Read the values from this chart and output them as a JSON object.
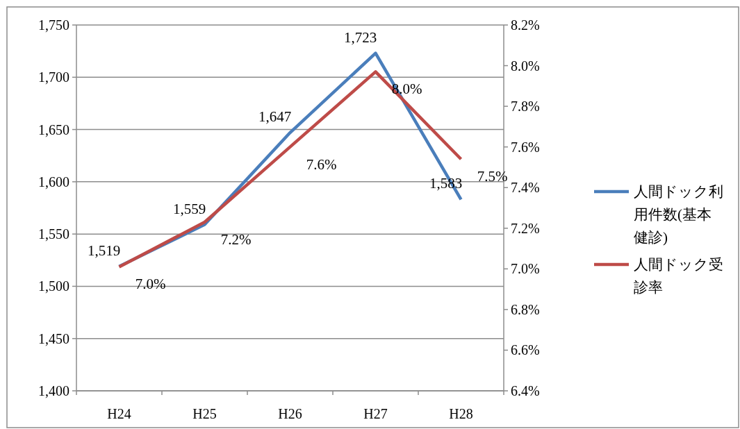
{
  "chart_data": {
    "type": "line",
    "categories": [
      "H24",
      "H25",
      "H26",
      "H27",
      "H28"
    ],
    "series": [
      {
        "name": "人間ドック利用件数(基本健診)",
        "color": "#4a7ebb",
        "values": [
          1519,
          1559,
          1647,
          1723,
          1583
        ],
        "value_labels": [
          "1,519",
          "1,559",
          "1,647",
          "1,723",
          "1,583"
        ]
      },
      {
        "name": "人間ドック受診率",
        "color": "#be4b48",
        "axis": "y2",
        "values": [
          7.01,
          7.23,
          7.6,
          7.97,
          7.54
        ],
        "value_labels": [
          "7.0%",
          "7.2%",
          "7.6%",
          "8.0%",
          "7.5%"
        ]
      }
    ],
    "ylim": [
      1400,
      1750
    ],
    "yticks": [
      {
        "value": 1400,
        "label": "1,400"
      },
      {
        "value": 1450,
        "label": "1,450"
      },
      {
        "value": 1500,
        "label": "1,500"
      },
      {
        "value": 1550,
        "label": "1,550"
      },
      {
        "value": 1600,
        "label": "1,600"
      },
      {
        "value": 1650,
        "label": "1,650"
      },
      {
        "value": 1700,
        "label": "1,700"
      },
      {
        "value": 1750,
        "label": "1,750"
      }
    ],
    "y2lim": [
      6.4,
      8.2
    ],
    "y2ticks": [
      {
        "value": 6.4,
        "label": "6.4%"
      },
      {
        "value": 6.6,
        "label": "6.6%"
      },
      {
        "value": 6.8,
        "label": "6.8%"
      },
      {
        "value": 7.0,
        "label": "7.0%"
      },
      {
        "value": 7.2,
        "label": "7.2%"
      },
      {
        "value": 7.4,
        "label": "7.4%"
      },
      {
        "value": 7.6,
        "label": "7.6%"
      },
      {
        "value": 7.8,
        "label": "7.8%"
      },
      {
        "value": 8.0,
        "label": "8.0%"
      },
      {
        "value": 8.2,
        "label": "8.2%"
      }
    ],
    "grid": "y",
    "legend": "right",
    "marker": "none",
    "line_style": "solid"
  }
}
